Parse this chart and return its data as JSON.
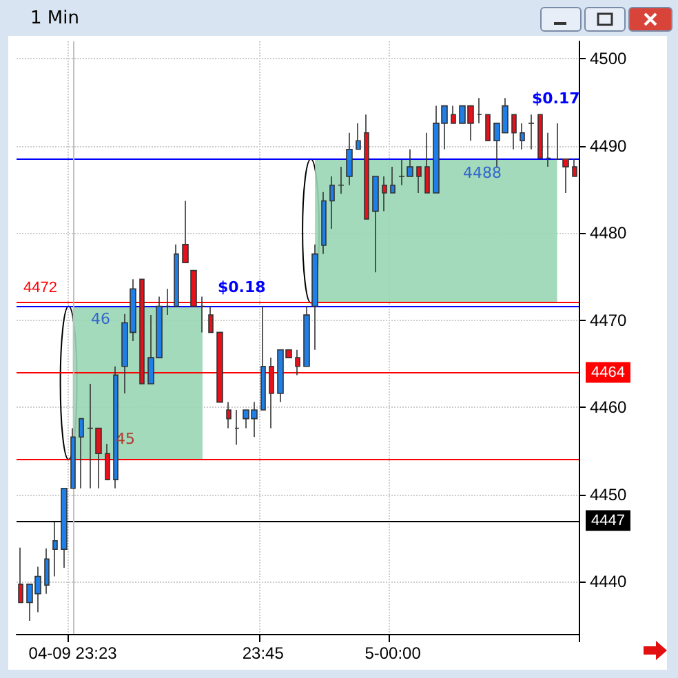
{
  "chart_data": {
    "type": "candlestick",
    "title": "1 Min",
    "categories": [
      null,
      null,
      null,
      null,
      null,
      null,
      "04-09 23:23",
      null,
      null,
      null,
      null,
      null,
      null,
      null,
      null,
      null,
      null,
      null,
      null,
      null,
      null,
      null,
      null,
      null,
      null,
      null,
      null,
      null,
      "23:45",
      null,
      null,
      null,
      null,
      null,
      null,
      null,
      null,
      null,
      null,
      null,
      null,
      null,
      null,
      "5-00:00",
      null,
      null,
      null,
      null,
      null,
      null,
      null,
      null,
      null,
      null,
      null,
      null,
      null,
      null,
      null,
      null,
      null,
      null,
      null,
      null,
      null
    ],
    "ohlc": [
      [
        4439.7,
        4443.9,
        4437.6,
        4437.6
      ],
      [
        4437.6,
        4439.7,
        4435.5,
        4439.7
      ],
      [
        4438.6,
        4441.7,
        4436.5,
        4440.6
      ],
      [
        4439.6,
        4443.8,
        4438.6,
        4442.6
      ],
      [
        4443.7,
        4446.8,
        4440.6,
        4444.7
      ],
      [
        4443.7,
        4450.7,
        4441.6,
        4450.7
      ],
      [
        4450.7,
        4457.6,
        4450.7,
        4456.6
      ],
      [
        4456.6,
        4458.7,
        4450.7,
        4458.7
      ],
      [
        4457.6,
        4462.7,
        4450.7,
        4457.6
      ],
      [
        4457.6,
        4457.6,
        4450.7,
        4454.7
      ],
      [
        4454.7,
        4455.8,
        4451.7,
        4451.7
      ],
      [
        4451.7,
        4464.7,
        4450.7,
        4463.7
      ],
      [
        4464.7,
        4470.7,
        4461.6,
        4469.7
      ],
      [
        4468.6,
        4474.7,
        4467.6,
        4473.6
      ],
      [
        4474.7,
        4474.7,
        4462.7,
        4462.7
      ],
      [
        4462.7,
        4470.6,
        4462.7,
        4465.7
      ],
      [
        4465.7,
        4472.7,
        4465.7,
        4471.6
      ],
      [
        4471.6,
        4473.6,
        4470.6,
        4471.6
      ],
      [
        4471.6,
        4478.7,
        4471.6,
        4477.6
      ],
      [
        4478.7,
        4483.7,
        4476.6,
        4476.6
      ],
      [
        4475.7,
        4475.7,
        4471.6,
        4471.6
      ],
      [
        4471.6,
        4472.7,
        4468.6,
        4471.6
      ],
      [
        4470.6,
        4471.6,
        4468.6,
        4468.6
      ],
      [
        4468.6,
        4468.6,
        4460.6,
        4460.6
      ],
      [
        4459.7,
        4460.6,
        4457.6,
        4458.7
      ],
      [
        4457.6,
        4459.7,
        4455.7,
        4457.6
      ],
      [
        4458.7,
        4459.7,
        4457.6,
        4459.7
      ],
      [
        4458.7,
        4460.6,
        4456.6,
        4459.7
      ],
      [
        4459.7,
        4471.6,
        4459.7,
        4464.7
      ],
      [
        4464.7,
        4465.7,
        4457.6,
        4461.6
      ],
      [
        4461.6,
        4466.6,
        4460.6,
        4466.6
      ],
      [
        4466.6,
        4466.6,
        4465.7,
        4465.7
      ],
      [
        4465.7,
        4466.6,
        4463.7,
        4464.7
      ],
      [
        4464.7,
        4471.6,
        4464.7,
        4470.6
      ],
      [
        4471.6,
        4478.7,
        4466.6,
        4477.6
      ],
      [
        4478.6,
        4484.7,
        4477.6,
        4483.7
      ],
      [
        4483.7,
        4486.5,
        4480.5,
        4485.5
      ],
      [
        4485.5,
        4487.6,
        4484.5,
        4485.5
      ],
      [
        4486.5,
        4491.5,
        4485.5,
        4489.6
      ],
      [
        4489.6,
        4492.6,
        4489.6,
        4490.6
      ],
      [
        4491.5,
        4493.6,
        4481.6,
        4481.6
      ],
      [
        4482.5,
        4486.5,
        4475.5,
        4486.5
      ],
      [
        4485.5,
        4486.5,
        4482.5,
        4484.6
      ],
      [
        4484.6,
        4487.6,
        4484.6,
        4485.5
      ],
      [
        4486.5,
        4488.4,
        4485.5,
        4486.5
      ],
      [
        4486.5,
        4489.6,
        4486.5,
        4487.6
      ],
      [
        4487.6,
        4487.6,
        4484.6,
        4486.5
      ],
      [
        4487.6,
        4491.5,
        4484.6,
        4484.6
      ],
      [
        4484.6,
        4494.6,
        4484.6,
        4492.6
      ],
      [
        4492.6,
        4494.6,
        4489.6,
        4494.6
      ],
      [
        4493.6,
        4494.6,
        4492.6,
        4492.6
      ],
      [
        4492.6,
        4494.6,
        4492.6,
        4494.6
      ],
      [
        4494.6,
        4494.6,
        4490.6,
        4492.6
      ],
      [
        4493.6,
        4495.5,
        4492.6,
        4493.6
      ],
      [
        4493.6,
        4493.6,
        4490.6,
        4490.6
      ],
      [
        4490.6,
        4492.6,
        4487.6,
        4492.6
      ],
      [
        4491.5,
        4495.5,
        4491.5,
        4494.6
      ],
      [
        4493.6,
        4493.6,
        4489.6,
        4491.5
      ],
      [
        4490.6,
        4492.6,
        4489.6,
        4491.5
      ],
      [
        4492.6,
        4493.6,
        4489.6,
        4492.6
      ],
      [
        4493.6,
        4493.6,
        4488.6,
        4488.6
      ],
      [
        4488.6,
        4491.5,
        4487.6,
        4488.6
      ],
      [
        4488.5,
        4492.6,
        4488.5,
        4488.5
      ],
      [
        4488.5,
        4488.5,
        4484.6,
        4487.6
      ],
      [
        4487.6,
        4488.5,
        4486.5,
        4486.5
      ]
    ],
    "colors": [
      "#e8101a",
      "#1f7fe8",
      "#1f7fe8",
      "#1f7fe8",
      "#1f7fe8",
      "#1f7fe8",
      "#1f7fe8",
      "#1f7fe8",
      "#404040",
      "#e8101a",
      "#e8101a",
      "#1f7fe8",
      "#1f7fe8",
      "#1f7fe8",
      "#e8101a",
      "#1f7fe8",
      "#1f7fe8",
      "#404040",
      "#1f7fe8",
      "#e8101a",
      "#e8101a",
      "#404040",
      "#e8101a",
      "#e8101a",
      "#e8101a",
      "#404040",
      "#1f7fe8",
      "#1f7fe8",
      "#1f7fe8",
      "#e8101a",
      "#1f7fe8",
      "#e8101a",
      "#e8101a",
      "#1f7fe8",
      "#1f7fe8",
      "#1f7fe8",
      "#1f7fe8",
      "#404040",
      "#1f7fe8",
      "#1f7fe8",
      "#e8101a",
      "#1f7fe8",
      "#e8101a",
      "#1f7fe8",
      "#404040",
      "#1f7fe8",
      "#e8101a",
      "#e8101a",
      "#1f7fe8",
      "#1f7fe8",
      "#e8101a",
      "#1f7fe8",
      "#e8101a",
      "#404040",
      "#e8101a",
      "#1f7fe8",
      "#1f7fe8",
      "#e8101a",
      "#1f7fe8",
      "#404040",
      "#e8101a",
      "#404040",
      "#404040",
      "#e8101a",
      "#e8101a"
    ],
    "ylim": [
      4434,
      4502
    ],
    "yticks": [
      {
        "value": 4440,
        "label": "4440"
      },
      {
        "value": 4450,
        "label": "4450"
      },
      {
        "value": 4460,
        "label": "4460"
      },
      {
        "value": 4470,
        "label": "4470"
      },
      {
        "value": 4480,
        "label": "4480"
      },
      {
        "value": 4490,
        "label": "4490"
      },
      {
        "value": 4500,
        "label": "4500"
      }
    ],
    "grid": true,
    "ref_lines": [
      {
        "axis": "y",
        "value": 4447,
        "label": "4447",
        "color": "#000000"
      },
      {
        "axis": "y",
        "value": 4464,
        "label": "4464",
        "color": "#ff0000"
      },
      {
        "axis": "y",
        "value": 4454,
        "color": "#ff0000"
      },
      {
        "axis": "y",
        "value": 4472,
        "label": "4472",
        "color": "#ff0000"
      },
      {
        "axis": "y",
        "value": 4471.6,
        "color": "#0000ff"
      },
      {
        "axis": "y",
        "value": 4488.5,
        "color": "#0000ff"
      },
      {
        "axis": "x",
        "value": "04-09 23:23",
        "color": "#c0c0c0"
      }
    ],
    "bands": [
      {
        "axis": "y",
        "from": 4454,
        "to": 4471.6,
        "color": "#99d6b4"
      },
      {
        "axis": "y",
        "from": 4472,
        "to": 4488.5,
        "color": "#99d6b4"
      }
    ],
    "annotations": [
      "46",
      "4488",
      "45",
      "$0.18",
      "$0.17"
    ]
  }
}
